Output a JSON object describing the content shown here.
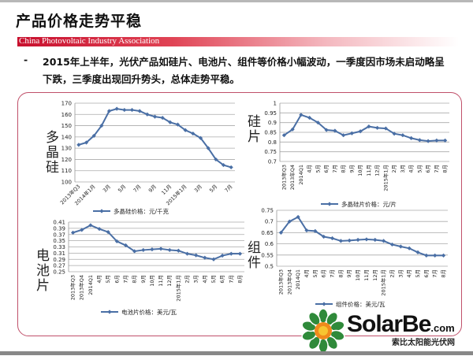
{
  "slide": {
    "title": "产品价格走势平稳",
    "banner": "China Photovoltaic Industry Association",
    "bullet": "-",
    "paragraph": "2015年上半年，光伏产品如硅片、电池片、组件等价格小幅波动，一季度因市场未启动略呈下跌，三季度出现回升势头，总体走势平稳。",
    "logo": {
      "name": "SolarBe",
      "com": ".com",
      "subtitle": "索比太阳能光伏网"
    },
    "accent_color": "#c8102e",
    "line_color": "#4a6fa5"
  },
  "chart_data": [
    {
      "type": "line",
      "side_label": "多晶硅",
      "legend": "多晶硅价格：元/千克",
      "ylim": [
        100,
        170
      ],
      "yticks": [
        100,
        110,
        120,
        130,
        140,
        150,
        160,
        170
      ],
      "categories": [
        "2013年Q3",
        "2013年Q4",
        "2014年1月",
        "2月",
        "3月",
        "4月",
        "5月",
        "6月",
        "7月",
        "8月",
        "9月",
        "10月",
        "11月",
        "12月",
        "2015年1月",
        "2月",
        "3月",
        "4月",
        "5月",
        "6月",
        "7月"
      ],
      "tick_labels": [
        "2013年Q3",
        "",
        "2014年1月",
        "",
        "3月",
        "",
        "5月",
        "",
        "7月",
        "",
        "9月",
        "",
        "11月",
        "",
        "2015年1月",
        "",
        "3月",
        "",
        "5月",
        "",
        "7月"
      ],
      "values": [
        133,
        135,
        141,
        150,
        163,
        165,
        164,
        164,
        163,
        160,
        158,
        157,
        153,
        151,
        146,
        143,
        139,
        130,
        120,
        115,
        113
      ],
      "grid": true
    },
    {
      "type": "line",
      "side_label": "硅片",
      "legend": "多晶硅片价格：元/片",
      "ylim": [
        0.7,
        1
      ],
      "yticks": [
        0.7,
        0.75,
        0.8,
        0.85,
        0.9,
        0.95,
        1
      ],
      "categories": [
        "2013年Q3",
        "2013年Q4",
        "2014Q1",
        "4月",
        "5月",
        "6月",
        "7月",
        "8月",
        "9月",
        "10月",
        "11月",
        "12月",
        "2015年1月",
        "2月",
        "3月",
        "4月",
        "5月",
        "6月",
        "7月",
        "8月"
      ],
      "values": [
        0.835,
        0.865,
        0.94,
        0.925,
        0.9,
        0.862,
        0.858,
        0.835,
        0.845,
        0.855,
        0.88,
        0.873,
        0.87,
        0.843,
        0.835,
        0.82,
        0.81,
        0.805,
        0.808,
        0.808
      ],
      "grid": true
    },
    {
      "type": "line",
      "side_label": "电池片",
      "legend": "电池片价格：美元/瓦",
      "ylim": [
        0.25,
        0.41
      ],
      "yticks": [
        0.25,
        0.27,
        0.29,
        0.31,
        0.33,
        0.35,
        0.37,
        0.39,
        0.41
      ],
      "categories": [
        "2013年Q3",
        "2013年Q4",
        "2014Q1",
        "4月",
        "5月",
        "6月",
        "7月",
        "8月",
        "9月",
        "10月",
        "11月",
        "12月",
        "2015年1月",
        "2月",
        "3月",
        "4月",
        "5月",
        "6月",
        "7月",
        "8月"
      ],
      "values": [
        0.376,
        0.385,
        0.4,
        0.388,
        0.378,
        0.348,
        0.335,
        0.316,
        0.32,
        0.322,
        0.324,
        0.32,
        0.318,
        0.308,
        0.303,
        0.295,
        0.29,
        0.302,
        0.308,
        0.308
      ],
      "grid": true
    },
    {
      "type": "line",
      "side_label": "组件",
      "legend": "组件价格：美元/瓦",
      "ylim": [
        0.5,
        0.75
      ],
      "yticks": [
        0.5,
        0.55,
        0.6,
        0.65,
        0.7,
        0.75
      ],
      "categories": [
        "2013年Q3",
        "2013年Q4",
        "2014Q1",
        "4月",
        "5月",
        "6月",
        "7月",
        "8月",
        "9月",
        "10月",
        "11月",
        "12月",
        "2015年1月",
        "2月",
        "3月",
        "4月",
        "5月",
        "6月",
        "7月",
        "8月"
      ],
      "values": [
        0.65,
        0.7,
        0.72,
        0.66,
        0.657,
        0.632,
        0.625,
        0.613,
        0.615,
        0.618,
        0.62,
        0.618,
        0.613,
        0.597,
        0.588,
        0.58,
        0.562,
        0.548,
        0.548,
        0.548
      ],
      "grid": true
    }
  ]
}
